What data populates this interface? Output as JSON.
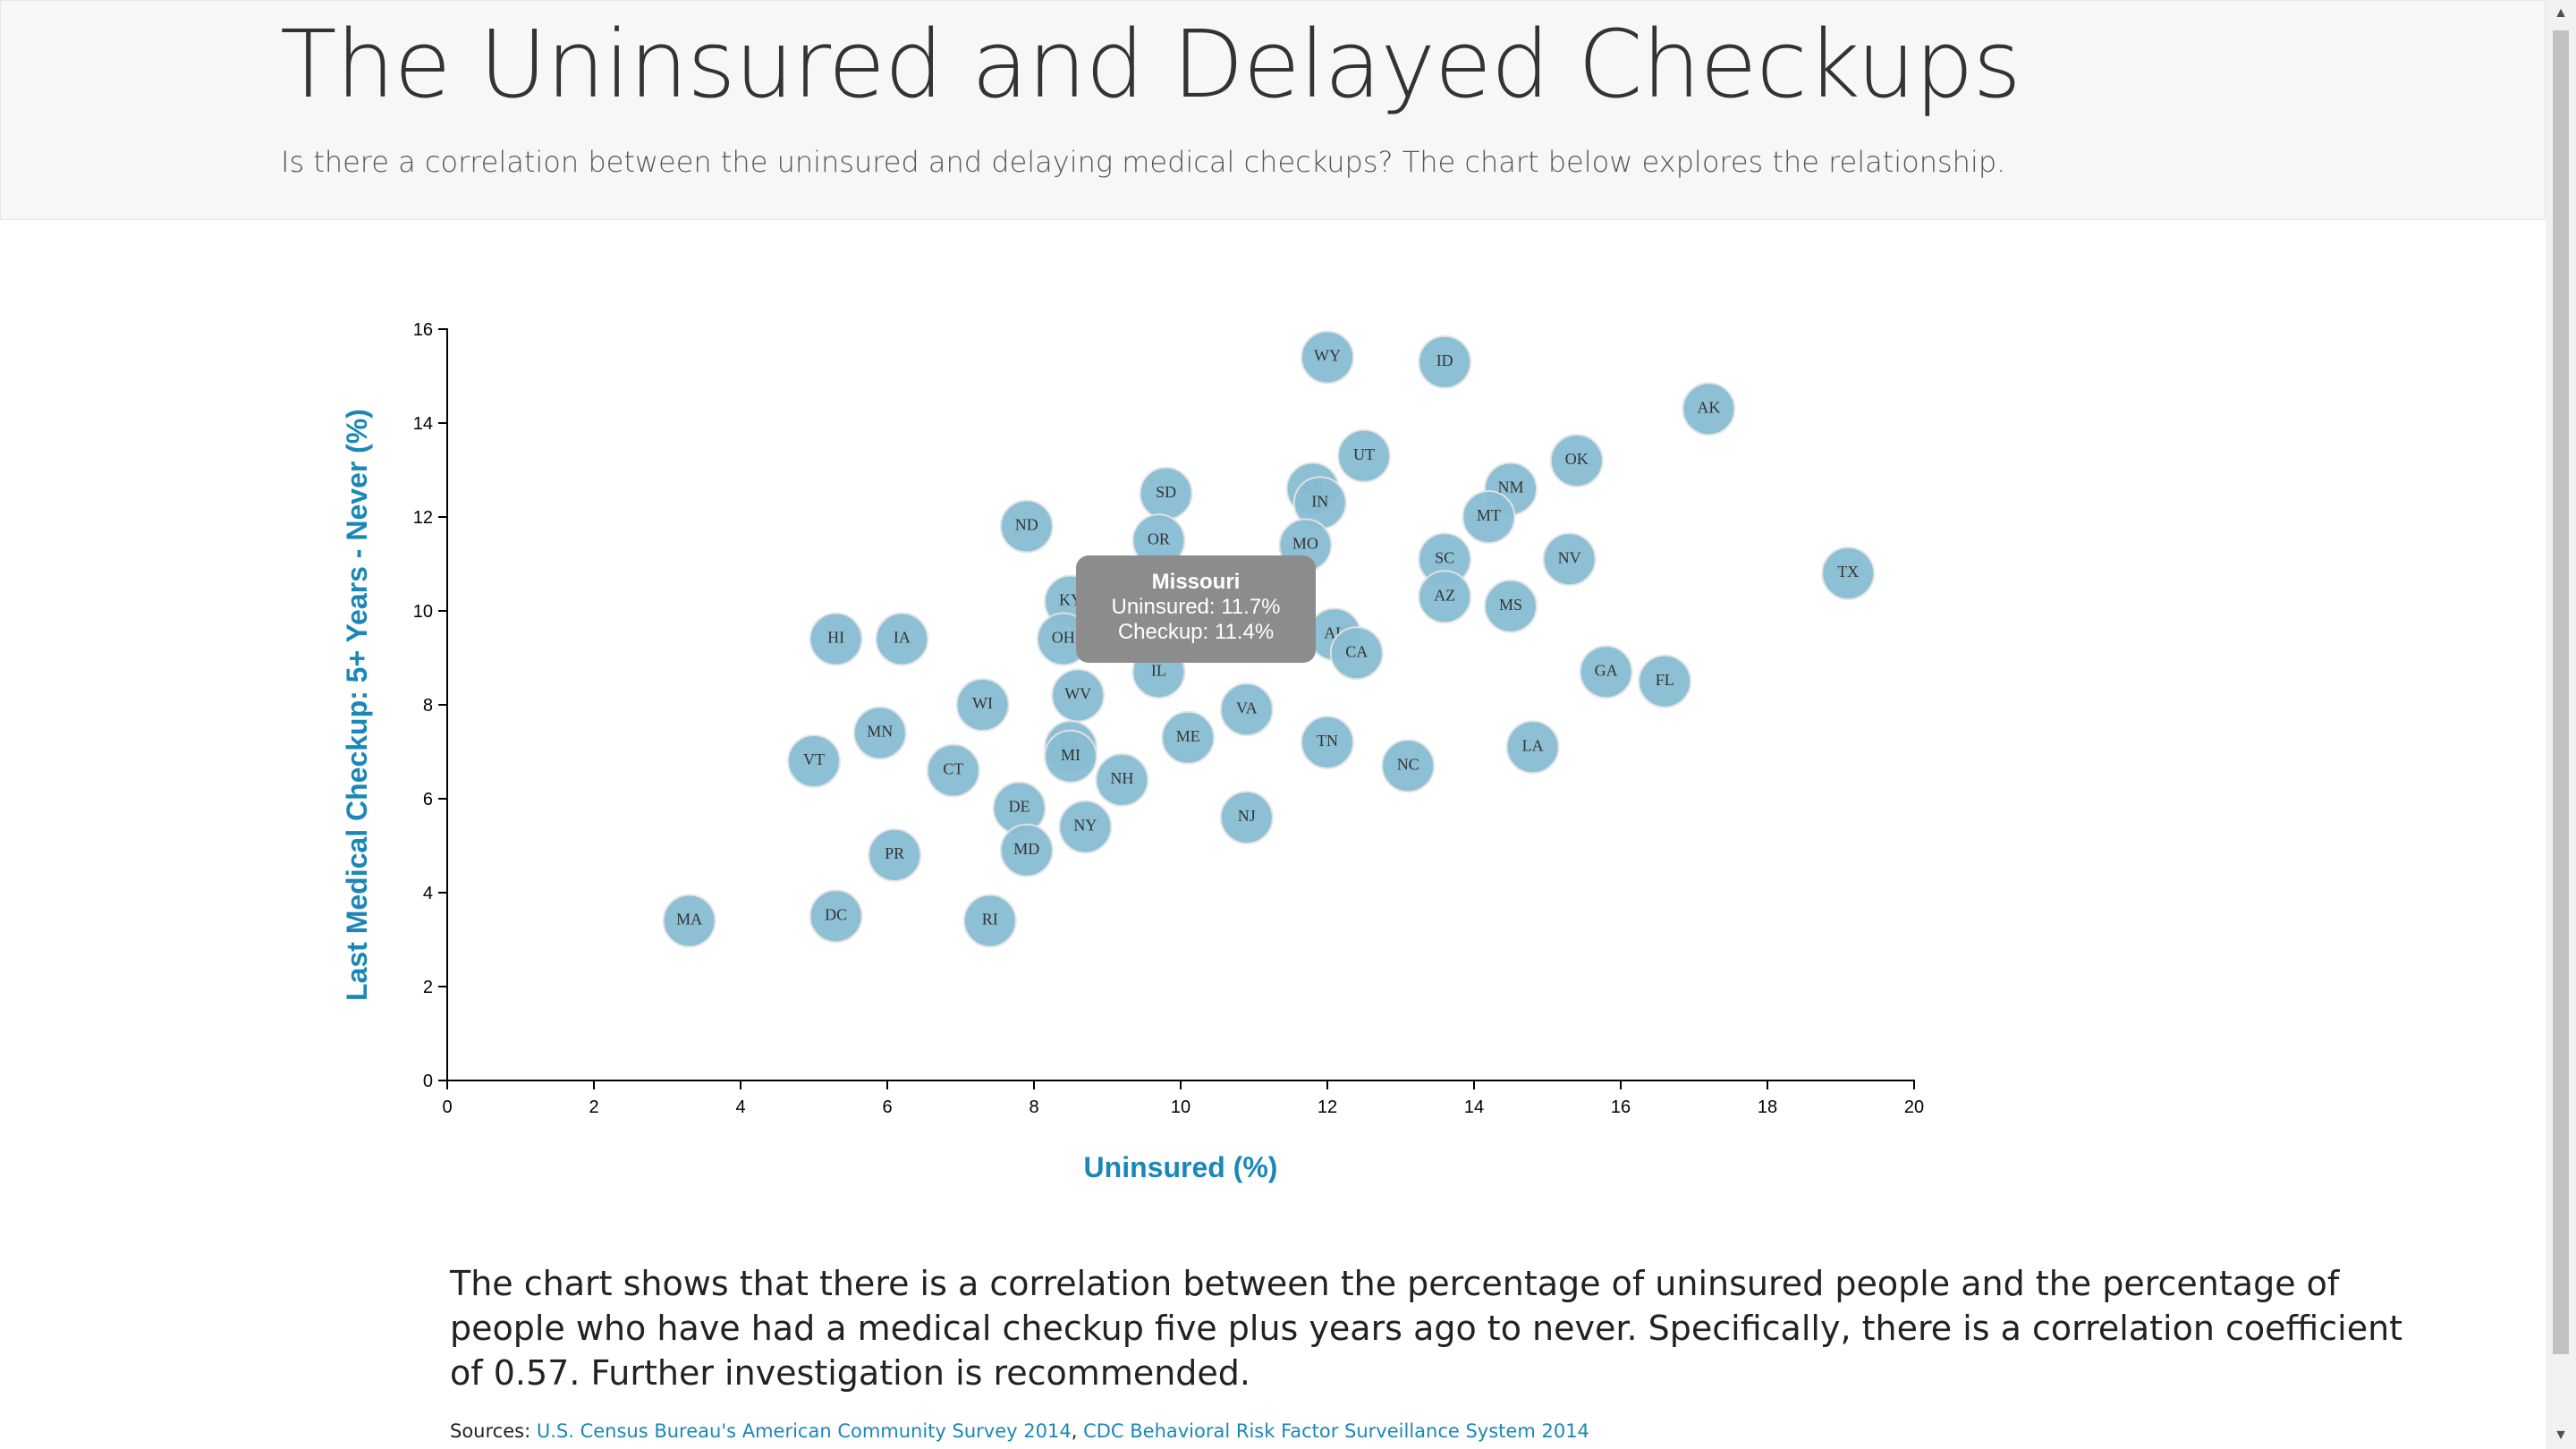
{
  "header": {
    "title": "The Uninsured and Delayed Checkups",
    "subtitle": "Is there a correlation between the uninsured and delaying medical checkups? The chart below explores the relationship."
  },
  "tooltip": {
    "title": "Missouri",
    "line1": "Uninsured: 11.7%",
    "line2": "Checkup: 11.4%"
  },
  "analysis": {
    "text": "The chart shows that there is a correlation between the percentage of uninsured people and the percentage of people who have had a medical checkup five plus years ago to never. Specifically, there is a correlation coefficient of 0.57. Further investigation is recommended."
  },
  "sources": {
    "label": "Sources:",
    "link1": "U.S. Census Bureau's American Community Survey 2014",
    "separator": ",",
    "link2": "CDC Behavioral Risk Factor Surveillance System 2014"
  },
  "colors": {
    "marker": "#89bdd3",
    "axis_label": "#1a87b7",
    "tooltip": "#8c8c8c"
  },
  "chart_data": {
    "type": "scatter",
    "xlabel": "Uninsured (%)",
    "ylabel": "Last Medical Checkup: 5+ Years - Never (%)",
    "xlim": [
      0,
      20
    ],
    "ylim": [
      0,
      16
    ],
    "xticks": [
      "0",
      "2",
      "4",
      "6",
      "8",
      "10",
      "12",
      "14",
      "16",
      "18",
      "20"
    ],
    "yticks": [
      "0",
      "2",
      "4",
      "6",
      "8",
      "10",
      "12",
      "14",
      "16"
    ],
    "grid": false,
    "points": [
      {
        "label": "WY",
        "x": 12.0,
        "y": 15.4
      },
      {
        "label": "ID",
        "x": 13.6,
        "y": 15.3
      },
      {
        "label": "AK",
        "x": 17.2,
        "y": 14.3
      },
      {
        "label": "UT",
        "x": 12.5,
        "y": 13.3
      },
      {
        "label": "OK",
        "x": 15.4,
        "y": 13.2
      },
      {
        "label": "SD",
        "x": 9.8,
        "y": 12.5
      },
      {
        "label": "AR",
        "x": 11.8,
        "y": 12.6
      },
      {
        "label": "IN",
        "x": 11.9,
        "y": 12.3
      },
      {
        "label": "NM",
        "x": 14.5,
        "y": 12.6
      },
      {
        "label": "MT",
        "x": 14.2,
        "y": 12.0
      },
      {
        "label": "ND",
        "x": 7.9,
        "y": 11.8
      },
      {
        "label": "OR",
        "x": 9.7,
        "y": 11.5
      },
      {
        "label": "MO",
        "x": 11.7,
        "y": 11.4
      },
      {
        "label": "SC",
        "x": 13.6,
        "y": 11.1
      },
      {
        "label": "NV",
        "x": 15.3,
        "y": 11.1
      },
      {
        "label": "TX",
        "x": 19.1,
        "y": 10.8
      },
      {
        "label": "AZ",
        "x": 13.6,
        "y": 10.3
      },
      {
        "label": "MS",
        "x": 14.5,
        "y": 10.1
      },
      {
        "label": "KY",
        "x": 8.5,
        "y": 10.2
      },
      {
        "label": "OH",
        "x": 8.4,
        "y": 9.4
      },
      {
        "label": "AL",
        "x": 12.1,
        "y": 9.5
      },
      {
        "label": "CA",
        "x": 12.4,
        "y": 9.1
      },
      {
        "label": "HI",
        "x": 5.3,
        "y": 9.4
      },
      {
        "label": "IA",
        "x": 6.2,
        "y": 9.4
      },
      {
        "label": "IL",
        "x": 9.7,
        "y": 8.7
      },
      {
        "label": "GA",
        "x": 15.8,
        "y": 8.7
      },
      {
        "label": "FL",
        "x": 16.6,
        "y": 8.5
      },
      {
        "label": "WI",
        "x": 7.3,
        "y": 8.0
      },
      {
        "label": "WV",
        "x": 8.6,
        "y": 8.2
      },
      {
        "label": "VA",
        "x": 10.9,
        "y": 7.9
      },
      {
        "label": "MN",
        "x": 5.9,
        "y": 7.4
      },
      {
        "label": "ME",
        "x": 10.1,
        "y": 7.3
      },
      {
        "label": "TN",
        "x": 12.0,
        "y": 7.2
      },
      {
        "label": "LA",
        "x": 14.8,
        "y": 7.1
      },
      {
        "label": "PA",
        "x": 8.5,
        "y": 7.1
      },
      {
        "label": "MI",
        "x": 8.5,
        "y": 6.9
      },
      {
        "label": "VT",
        "x": 5.0,
        "y": 6.8
      },
      {
        "label": "NC",
        "x": 13.1,
        "y": 6.7
      },
      {
        "label": "CT",
        "x": 6.9,
        "y": 6.6
      },
      {
        "label": "NH",
        "x": 9.2,
        "y": 6.4
      },
      {
        "label": "DE",
        "x": 7.8,
        "y": 5.8
      },
      {
        "label": "NJ",
        "x": 10.9,
        "y": 5.6
      },
      {
        "label": "NY",
        "x": 8.7,
        "y": 5.4
      },
      {
        "label": "MD",
        "x": 7.9,
        "y": 4.9
      },
      {
        "label": "PR",
        "x": 6.1,
        "y": 4.8
      },
      {
        "label": "MA",
        "x": 3.3,
        "y": 3.4
      },
      {
        "label": "DC",
        "x": 5.3,
        "y": 3.5
      },
      {
        "label": "RI",
        "x": 7.4,
        "y": 3.4
      }
    ]
  }
}
